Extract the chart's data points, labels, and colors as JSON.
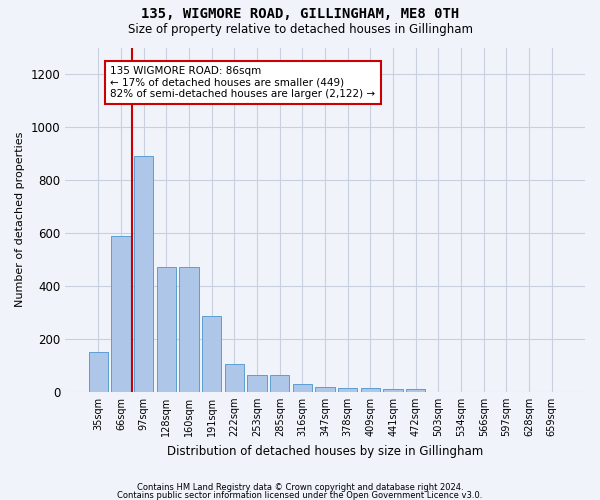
{
  "title": "135, WIGMORE ROAD, GILLINGHAM, ME8 0TH",
  "subtitle": "Size of property relative to detached houses in Gillingham",
  "xlabel": "Distribution of detached houses by size in Gillingham",
  "ylabel": "Number of detached properties",
  "categories": [
    "35sqm",
    "66sqm",
    "97sqm",
    "128sqm",
    "160sqm",
    "191sqm",
    "222sqm",
    "253sqm",
    "285sqm",
    "316sqm",
    "347sqm",
    "378sqm",
    "409sqm",
    "441sqm",
    "472sqm",
    "503sqm",
    "534sqm",
    "566sqm",
    "597sqm",
    "628sqm",
    "659sqm"
  ],
  "values": [
    152,
    590,
    890,
    470,
    470,
    285,
    105,
    62,
    62,
    28,
    20,
    15,
    15,
    12,
    12,
    0,
    0,
    0,
    0,
    0,
    0
  ],
  "bar_color": "#aec6e8",
  "bar_edge_color": "#5a9fd4",
  "vline_color": "#cc0000",
  "annotation_text": "135 WIGMORE ROAD: 86sqm\n← 17% of detached houses are smaller (449)\n82% of semi-detached houses are larger (2,122) →",
  "annotation_box_color": "#ffffff",
  "annotation_box_edge_color": "#cc0000",
  "ylim": [
    0,
    1300
  ],
  "yticks": [
    0,
    200,
    400,
    600,
    800,
    1000,
    1200
  ],
  "footer1": "Contains HM Land Registry data © Crown copyright and database right 2024.",
  "footer2": "Contains public sector information licensed under the Open Government Licence v3.0.",
  "background_color": "#f0f4fa",
  "grid_color": "#c8d0e0",
  "fig_width": 6.0,
  "fig_height": 5.0,
  "dpi": 100
}
